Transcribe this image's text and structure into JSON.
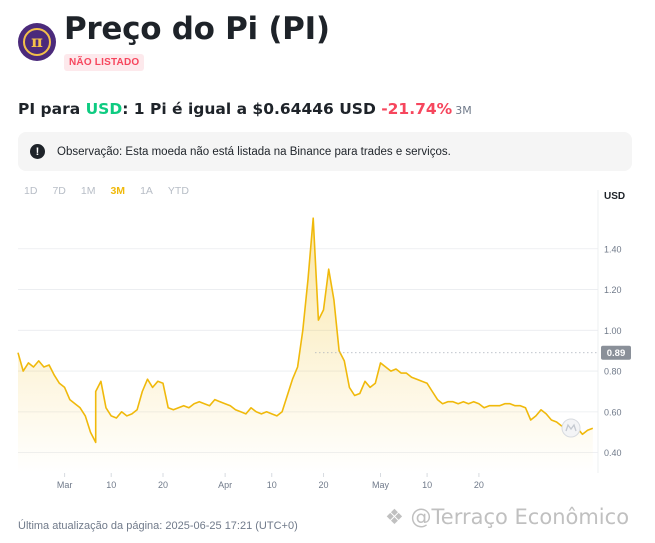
{
  "header": {
    "title": "Preço do Pi (PI)",
    "badge": "NÃO LISTADO",
    "logo_glyph": "π"
  },
  "price": {
    "prefix": "PI para ",
    "quote": "USD",
    "statement": ": 1 Pi é igual a $0.64446 USD ",
    "change": "-21.74%",
    "period": "3M"
  },
  "notice": {
    "icon": "warning-icon",
    "text": "Observação: Esta moeda não está listada na Binance para trades e serviços."
  },
  "ranges": [
    "1D",
    "7D",
    "1M",
    "3M",
    "1A",
    "YTD"
  ],
  "active_range": "3M",
  "footer": "Última atualização da página: 2025-06-25 17:21 (UTC+0)",
  "watermark": "@Terraço Econômico",
  "colors": {
    "line": "#f0b90b",
    "positive": "#0ecb81",
    "negative": "#f6465d",
    "grid": "#eaecef"
  },
  "chart_data": {
    "type": "area",
    "y_unit_label": "USD",
    "ylim": [
      0.3,
      1.6
    ],
    "yticks": [
      0.4,
      0.6,
      0.8,
      1.0,
      1.2,
      1.4
    ],
    "ytick_labels": [
      "0.40",
      "0.60",
      "0.80",
      "1.00",
      "1.20",
      "1.40"
    ],
    "current_value": 0.89,
    "current_label": "0.89",
    "x_tick_labels": [
      "Mar",
      "10",
      "20",
      "Apr",
      "10",
      "20",
      "May",
      "10",
      "20"
    ],
    "x_tick_dates": [
      "2025-03-01",
      "2025-03-10",
      "2025-03-20",
      "2025-04-01",
      "2025-04-10",
      "2025-04-20",
      "2025-05-01",
      "2025-05-10",
      "2025-05-20"
    ],
    "grid": true,
    "points": [
      [
        "2025-02-20",
        0.89
      ],
      [
        "2025-02-21",
        0.8
      ],
      [
        "2025-02-22",
        0.84
      ],
      [
        "2025-02-23",
        0.82
      ],
      [
        "2025-02-24",
        0.85
      ],
      [
        "2025-02-25",
        0.82
      ],
      [
        "2025-02-26",
        0.83
      ],
      [
        "2025-02-27",
        0.78
      ],
      [
        "2025-02-28",
        0.74
      ],
      [
        "2025-03-01",
        0.72
      ],
      [
        "2025-03-02",
        0.66
      ],
      [
        "2025-03-03",
        0.64
      ],
      [
        "2025-03-04",
        0.62
      ],
      [
        "2025-03-05",
        0.58
      ],
      [
        "2025-03-06",
        0.5
      ],
      [
        "2025-03-07",
        0.45
      ],
      [
        "2025-03-07",
        0.7
      ],
      [
        "2025-03-08",
        0.75
      ],
      [
        "2025-03-09",
        0.62
      ],
      [
        "2025-03-10",
        0.58
      ],
      [
        "2025-03-11",
        0.57
      ],
      [
        "2025-03-12",
        0.6
      ],
      [
        "2025-03-13",
        0.58
      ],
      [
        "2025-03-14",
        0.59
      ],
      [
        "2025-03-15",
        0.61
      ],
      [
        "2025-03-16",
        0.7
      ],
      [
        "2025-03-17",
        0.76
      ],
      [
        "2025-03-18",
        0.72
      ],
      [
        "2025-03-19",
        0.75
      ],
      [
        "2025-03-20",
        0.74
      ],
      [
        "2025-03-21",
        0.62
      ],
      [
        "2025-03-22",
        0.61
      ],
      [
        "2025-03-23",
        0.62
      ],
      [
        "2025-03-24",
        0.63
      ],
      [
        "2025-03-25",
        0.62
      ],
      [
        "2025-03-26",
        0.64
      ],
      [
        "2025-03-27",
        0.65
      ],
      [
        "2025-03-28",
        0.64
      ],
      [
        "2025-03-29",
        0.63
      ],
      [
        "2025-03-30",
        0.66
      ],
      [
        "2025-03-31",
        0.65
      ],
      [
        "2025-04-01",
        0.64
      ],
      [
        "2025-04-02",
        0.63
      ],
      [
        "2025-04-03",
        0.61
      ],
      [
        "2025-04-04",
        0.6
      ],
      [
        "2025-04-05",
        0.59
      ],
      [
        "2025-04-06",
        0.62
      ],
      [
        "2025-04-07",
        0.6
      ],
      [
        "2025-04-08",
        0.59
      ],
      [
        "2025-04-09",
        0.6
      ],
      [
        "2025-04-10",
        0.59
      ],
      [
        "2025-04-11",
        0.58
      ],
      [
        "2025-04-12",
        0.6
      ],
      [
        "2025-04-13",
        0.68
      ],
      [
        "2025-04-14",
        0.76
      ],
      [
        "2025-04-15",
        0.82
      ],
      [
        "2025-04-16",
        1.0
      ],
      [
        "2025-04-17",
        1.25
      ],
      [
        "2025-04-18",
        1.55
      ],
      [
        "2025-04-19",
        1.05
      ],
      [
        "2025-04-20",
        1.1
      ],
      [
        "2025-04-21",
        1.3
      ],
      [
        "2025-04-22",
        1.15
      ],
      [
        "2025-04-23",
        0.9
      ],
      [
        "2025-04-24",
        0.85
      ],
      [
        "2025-04-25",
        0.72
      ],
      [
        "2025-04-26",
        0.68
      ],
      [
        "2025-04-27",
        0.69
      ],
      [
        "2025-04-28",
        0.75
      ],
      [
        "2025-04-29",
        0.72
      ],
      [
        "2025-04-30",
        0.74
      ],
      [
        "2025-05-01",
        0.84
      ],
      [
        "2025-05-02",
        0.82
      ],
      [
        "2025-05-03",
        0.8
      ],
      [
        "2025-05-04",
        0.81
      ],
      [
        "2025-05-05",
        0.79
      ],
      [
        "2025-05-06",
        0.79
      ],
      [
        "2025-05-07",
        0.77
      ],
      [
        "2025-05-08",
        0.76
      ],
      [
        "2025-05-09",
        0.75
      ],
      [
        "2025-05-10",
        0.74
      ],
      [
        "2025-05-11",
        0.7
      ],
      [
        "2025-05-12",
        0.66
      ],
      [
        "2025-05-13",
        0.64
      ],
      [
        "2025-05-14",
        0.65
      ],
      [
        "2025-05-15",
        0.65
      ],
      [
        "2025-05-16",
        0.64
      ],
      [
        "2025-05-17",
        0.65
      ],
      [
        "2025-05-18",
        0.64
      ],
      [
        "2025-05-19",
        0.65
      ],
      [
        "2025-05-20",
        0.64
      ],
      [
        "2025-05-21",
        0.62
      ],
      [
        "2025-05-22",
        0.63
      ],
      [
        "2025-05-23",
        0.63
      ],
      [
        "2025-05-24",
        0.63
      ],
      [
        "2025-05-25",
        0.64
      ],
      [
        "2025-05-26",
        0.64
      ],
      [
        "2025-05-27",
        0.63
      ],
      [
        "2025-05-28",
        0.63
      ],
      [
        "2025-05-29",
        0.62
      ],
      [
        "2025-05-30",
        0.56
      ],
      [
        "2025-05-31",
        0.58
      ],
      [
        "2025-06-01",
        0.61
      ],
      [
        "2025-06-02",
        0.59
      ],
      [
        "2025-06-03",
        0.56
      ],
      [
        "2025-06-04",
        0.55
      ],
      [
        "2025-06-05",
        0.53
      ],
      [
        "2025-06-06",
        0.54
      ],
      [
        "2025-06-07",
        0.53
      ],
      [
        "2025-06-08",
        0.52
      ],
      [
        "2025-06-09",
        0.49
      ],
      [
        "2025-06-10",
        0.51
      ],
      [
        "2025-06-11",
        0.52
      ]
    ]
  }
}
